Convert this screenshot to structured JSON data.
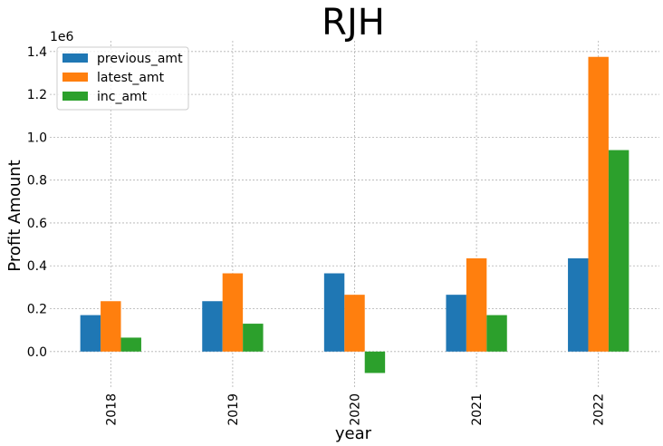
{
  "chart_data": {
    "type": "bar",
    "title": "RJH",
    "xlabel": "year",
    "ylabel": "Profit Amount",
    "y_offset_label": "1e6",
    "categories": [
      "2018",
      "2019",
      "2020",
      "2021",
      "2022"
    ],
    "series": [
      {
        "name": "previous_amt",
        "color": "#1f77b4",
        "values": [
          170000,
          235000,
          365000,
          265000,
          435000
        ]
      },
      {
        "name": "latest_amt",
        "color": "#ff7f0e",
        "values": [
          235000,
          365000,
          265000,
          435000,
          1375000
        ]
      },
      {
        "name": "inc_amt",
        "color": "#2ca02c",
        "values": [
          65000,
          130000,
          -100000,
          170000,
          940000
        ]
      }
    ],
    "yticks": [
      0.0,
      0.2,
      0.4,
      0.6,
      0.8,
      1.0,
      1.2,
      1.4
    ],
    "ytick_labels": [
      "0.0",
      "0.2",
      "0.4",
      "0.6",
      "0.8",
      "1.0",
      "1.2",
      "1.4"
    ],
    "ylim": [
      -0.17,
      1.45
    ],
    "grid": true,
    "legend_position": "top-left"
  }
}
